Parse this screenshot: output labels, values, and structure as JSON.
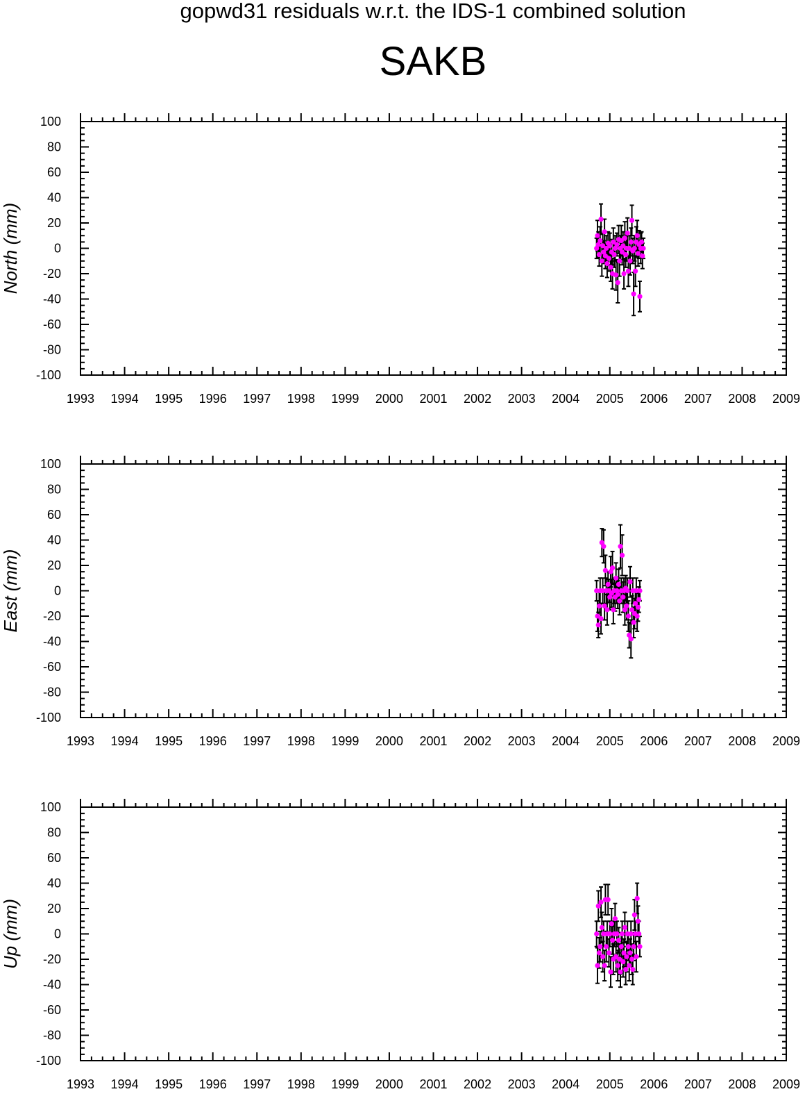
{
  "page": {
    "title": "gopwd31 residuals w.r.t. the IDS-1 combined solution",
    "station": "SAKB"
  },
  "colors": {
    "point": "#ff00ff",
    "error_bar": "#000000",
    "axis": "#000000"
  },
  "chart_data": [
    {
      "type": "scatter",
      "panel": "north",
      "ylabel": "North (mm)",
      "xlim": [
        1993,
        2009
      ],
      "ylim": [
        -100,
        100
      ],
      "x_ticks": [
        1993,
        1994,
        1995,
        1996,
        1997,
        1998,
        1999,
        2000,
        2001,
        2002,
        2003,
        2004,
        2005,
        2006,
        2007,
        2008,
        2009
      ],
      "y_ticks": [
        -100,
        -80,
        -60,
        -40,
        -20,
        0,
        20,
        40,
        60,
        80,
        100
      ],
      "error_bars": true,
      "points": [
        [
          2004.7,
          0,
          8
        ],
        [
          2004.72,
          10,
          12
        ],
        [
          2004.74,
          3,
          10
        ],
        [
          2004.76,
          -5,
          9
        ],
        [
          2004.78,
          6,
          11
        ],
        [
          2004.8,
          23,
          12
        ],
        [
          2004.82,
          -10,
          12
        ],
        [
          2004.84,
          2,
          10
        ],
        [
          2004.86,
          -3,
          9
        ],
        [
          2004.88,
          13,
          10
        ],
        [
          2004.9,
          -6,
          10
        ],
        [
          2004.92,
          0,
          10
        ],
        [
          2004.94,
          -12,
          11
        ],
        [
          2004.96,
          4,
          9
        ],
        [
          2004.98,
          -8,
          10
        ],
        [
          2005.0,
          2,
          10
        ],
        [
          2005.02,
          -15,
          11
        ],
        [
          2005.04,
          -3,
          10
        ],
        [
          2005.06,
          -20,
          12
        ],
        [
          2005.08,
          5,
          11
        ],
        [
          2005.1,
          -5,
          10
        ],
        [
          2005.12,
          0,
          10
        ],
        [
          2005.14,
          -21,
          12
        ],
        [
          2005.16,
          3,
          9
        ],
        [
          2005.18,
          -27,
          16
        ],
        [
          2005.2,
          7,
          11
        ],
        [
          2005.22,
          -10,
          12
        ],
        [
          2005.24,
          0,
          10
        ],
        [
          2005.26,
          6,
          12
        ],
        [
          2005.28,
          -3,
          10
        ],
        [
          2005.3,
          2,
          11
        ],
        [
          2005.32,
          -20,
          12
        ],
        [
          2005.34,
          8,
          13
        ],
        [
          2005.36,
          -5,
          10
        ],
        [
          2005.38,
          0,
          10
        ],
        [
          2005.4,
          12,
          12
        ],
        [
          2005.42,
          -18,
          12
        ],
        [
          2005.44,
          0,
          10
        ],
        [
          2005.46,
          -10,
          11
        ],
        [
          2005.48,
          5,
          11
        ],
        [
          2005.5,
          22,
          12
        ],
        [
          2005.52,
          -2,
          10
        ],
        [
          2005.54,
          -36,
          17
        ],
        [
          2005.56,
          0,
          10
        ],
        [
          2005.58,
          -18,
          12
        ],
        [
          2005.6,
          5,
          12
        ],
        [
          2005.62,
          10,
          12
        ],
        [
          2005.64,
          -4,
          10
        ],
        [
          2005.66,
          3,
          11
        ],
        [
          2005.68,
          -38,
          12
        ],
        [
          2005.7,
          0,
          12
        ],
        [
          2005.72,
          5,
          8
        ],
        [
          2005.74,
          -6,
          10
        ],
        [
          2005.76,
          0,
          8
        ]
      ]
    },
    {
      "type": "scatter",
      "panel": "east",
      "ylabel": "East (mm)",
      "xlim": [
        1993,
        2009
      ],
      "ylim": [
        -100,
        100
      ],
      "x_ticks": [
        1993,
        1994,
        1995,
        1996,
        1997,
        1998,
        1999,
        2000,
        2001,
        2002,
        2003,
        2004,
        2005,
        2006,
        2007,
        2008,
        2009
      ],
      "y_ticks": [
        -100,
        -80,
        -60,
        -40,
        -20,
        0,
        20,
        40,
        60,
        80,
        100
      ],
      "error_bars": true,
      "points": [
        [
          2004.7,
          0,
          8
        ],
        [
          2004.72,
          -20,
          12
        ],
        [
          2004.74,
          -27,
          10
        ],
        [
          2004.76,
          -12,
          11
        ],
        [
          2004.78,
          0,
          10
        ],
        [
          2004.8,
          -22,
          12
        ],
        [
          2004.82,
          38,
          11
        ],
        [
          2004.84,
          0,
          10
        ],
        [
          2004.86,
          35,
          13
        ],
        [
          2004.88,
          -12,
          11
        ],
        [
          2004.9,
          16,
          12
        ],
        [
          2004.92,
          0,
          10
        ],
        [
          2004.94,
          -15,
          12
        ],
        [
          2004.96,
          5,
          10
        ],
        [
          2004.98,
          0,
          9
        ],
        [
          2005.0,
          -5,
          10
        ],
        [
          2005.02,
          15,
          12
        ],
        [
          2005.04,
          -2,
          11
        ],
        [
          2005.06,
          18,
          13
        ],
        [
          2005.08,
          -15,
          11
        ],
        [
          2005.1,
          0,
          10
        ],
        [
          2005.12,
          -5,
          11
        ],
        [
          2005.14,
          10,
          12
        ],
        [
          2005.16,
          0,
          10
        ],
        [
          2005.18,
          -3,
          11
        ],
        [
          2005.2,
          5,
          12
        ],
        [
          2005.22,
          -8,
          11
        ],
        [
          2005.24,
          35,
          17
        ],
        [
          2005.26,
          0,
          10
        ],
        [
          2005.28,
          28,
          16
        ],
        [
          2005.3,
          -5,
          12
        ],
        [
          2005.32,
          0,
          10
        ],
        [
          2005.34,
          -15,
          12
        ],
        [
          2005.36,
          2,
          10
        ],
        [
          2005.38,
          -12,
          11
        ],
        [
          2005.4,
          0,
          10
        ],
        [
          2005.42,
          -20,
          12
        ],
        [
          2005.44,
          -35,
          10
        ],
        [
          2005.46,
          7,
          12
        ],
        [
          2005.48,
          -38,
          15
        ],
        [
          2005.5,
          -15,
          11
        ],
        [
          2005.52,
          0,
          10
        ],
        [
          2005.54,
          -25,
          12
        ],
        [
          2005.56,
          -18,
          12
        ],
        [
          2005.58,
          -10,
          11
        ],
        [
          2005.6,
          0,
          10
        ],
        [
          2005.62,
          -20,
          12
        ],
        [
          2005.64,
          -13,
          11
        ],
        [
          2005.66,
          -7,
          10
        ],
        [
          2005.68,
          0,
          8
        ]
      ]
    },
    {
      "type": "scatter",
      "panel": "up",
      "ylabel": "Up (mm)",
      "xlim": [
        1993,
        2009
      ],
      "ylim": [
        -100,
        100
      ],
      "x_ticks": [
        1993,
        1994,
        1995,
        1996,
        1997,
        1998,
        1999,
        2000,
        2001,
        2002,
        2003,
        2004,
        2005,
        2006,
        2007,
        2008,
        2009
      ],
      "y_ticks": [
        -100,
        -80,
        -60,
        -40,
        -20,
        0,
        20,
        40,
        60,
        80,
        100
      ],
      "error_bars": true,
      "points": [
        [
          2004.7,
          0,
          10
        ],
        [
          2004.72,
          -25,
          14
        ],
        [
          2004.74,
          22,
          12
        ],
        [
          2004.76,
          -15,
          12
        ],
        [
          2004.78,
          -10,
          12
        ],
        [
          2004.8,
          25,
          12
        ],
        [
          2004.82,
          5,
          12
        ],
        [
          2004.84,
          -18,
          12
        ],
        [
          2004.86,
          0,
          10
        ],
        [
          2004.88,
          -25,
          12
        ],
        [
          2004.9,
          27,
          12
        ],
        [
          2004.92,
          -10,
          12
        ],
        [
          2004.94,
          0,
          10
        ],
        [
          2004.96,
          27,
          12
        ],
        [
          2004.98,
          -15,
          11
        ],
        [
          2005.0,
          0,
          10
        ],
        [
          2005.02,
          -30,
          12
        ],
        [
          2005.04,
          8,
          12
        ],
        [
          2005.06,
          -5,
          11
        ],
        [
          2005.08,
          -20,
          12
        ],
        [
          2005.1,
          0,
          10
        ],
        [
          2005.12,
          12,
          12
        ],
        [
          2005.14,
          -18,
          12
        ],
        [
          2005.16,
          0,
          10
        ],
        [
          2005.18,
          -25,
          12
        ],
        [
          2005.2,
          -5,
          10
        ],
        [
          2005.22,
          -20,
          12
        ],
        [
          2005.24,
          -30,
          12
        ],
        [
          2005.26,
          -10,
          11
        ],
        [
          2005.28,
          0,
          10
        ],
        [
          2005.3,
          -22,
          12
        ],
        [
          2005.32,
          -15,
          11
        ],
        [
          2005.34,
          5,
          12
        ],
        [
          2005.36,
          -28,
          12
        ],
        [
          2005.38,
          -18,
          12
        ],
        [
          2005.4,
          0,
          10
        ],
        [
          2005.42,
          -10,
          11
        ],
        [
          2005.44,
          -25,
          12
        ],
        [
          2005.46,
          -15,
          11
        ],
        [
          2005.48,
          0,
          10
        ],
        [
          2005.5,
          -20,
          12
        ],
        [
          2005.52,
          -28,
          12
        ],
        [
          2005.54,
          -10,
          11
        ],
        [
          2005.56,
          15,
          12
        ],
        [
          2005.58,
          0,
          10
        ],
        [
          2005.6,
          -18,
          12
        ],
        [
          2005.62,
          28,
          12
        ],
        [
          2005.64,
          10,
          12
        ],
        [
          2005.66,
          0,
          10
        ],
        [
          2005.68,
          -10,
          8
        ]
      ]
    }
  ]
}
